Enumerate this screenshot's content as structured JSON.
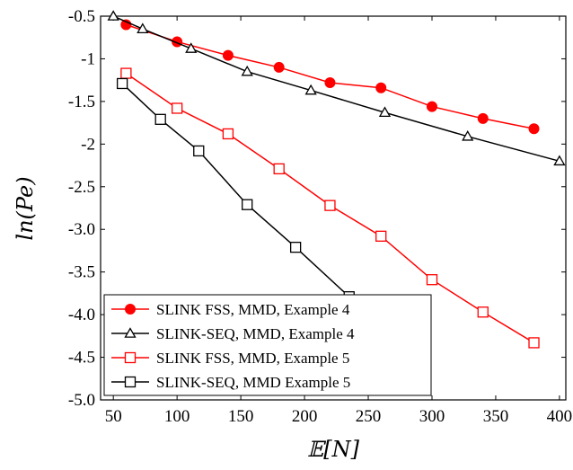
{
  "chart_data": {
    "type": "line",
    "title": "",
    "xlabel": "𝔼[N]",
    "ylabel": "ln(Pe)",
    "xlim": [
      40,
      405
    ],
    "ylim": [
      -5.0,
      -0.5
    ],
    "xticks": [
      "50",
      "100",
      "150",
      "200",
      "250",
      "300",
      "350",
      "400"
    ],
    "xtick_values": [
      50,
      100,
      150,
      200,
      250,
      300,
      350,
      400
    ],
    "yticks": [
      "-0.5",
      "-1",
      "-1.5",
      "-2",
      "-2.5",
      "-3.0",
      "-3.5",
      "-4.0",
      "-4.5",
      "-5.0"
    ],
    "ytick_values": [
      -0.5,
      -1,
      -1.5,
      -2,
      -2.5,
      -3.0,
      -3.5,
      -4.0,
      -4.5,
      -5.0
    ],
    "grid": false,
    "legend_position": "bottom-left",
    "series": [
      {
        "name": "SLINK FSS, MMD, Example 4",
        "color": "#ff0000",
        "marker": "filled-circle",
        "x": [
          60,
          100,
          140,
          180,
          220,
          260,
          300,
          340,
          380
        ],
        "y": [
          -0.6,
          -0.8,
          -0.96,
          -1.1,
          -1.28,
          -1.34,
          -1.56,
          -1.7,
          -1.82
        ]
      },
      {
        "name": "SLINK-SEQ, MMD, Example 4",
        "color": "#000000",
        "marker": "triangle",
        "x": [
          50,
          73,
          111,
          155,
          205,
          263,
          328,
          400
        ],
        "y": [
          -0.5,
          -0.65,
          -0.88,
          -1.15,
          -1.37,
          -1.63,
          -1.91,
          -2.2
        ]
      },
      {
        "name": "SLINK FSS, MMD, Example 5",
        "color": "#ff0000",
        "marker": "open-square",
        "x": [
          60,
          100,
          140,
          180,
          220,
          260,
          300,
          340,
          380
        ],
        "y": [
          -1.17,
          -1.58,
          -1.88,
          -2.29,
          -2.72,
          -3.08,
          -3.59,
          -3.97,
          -4.33
        ]
      },
      {
        "name": "SLINK-SEQ, MMD Example 5",
        "color": "#000000",
        "marker": "open-square",
        "x": [
          57,
          87,
          117,
          155,
          193,
          235
        ],
        "y": [
          -1.29,
          -1.71,
          -2.08,
          -2.71,
          -3.21,
          -3.79
        ]
      }
    ]
  }
}
